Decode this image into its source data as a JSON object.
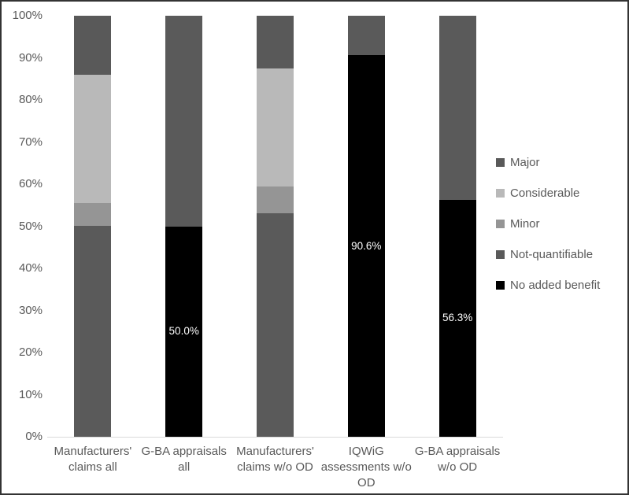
{
  "chart_data": {
    "type": "bar",
    "subtype": "100%-stacked-column",
    "title": "",
    "categories": [
      [
        "Manufacturers'",
        "claims all"
      ],
      [
        "G-BA appraisals all"
      ],
      [
        "Manufacturers'",
        "claims w/o OD"
      ],
      [
        "IQWiG",
        "assessments w/o",
        "OD"
      ],
      [
        "G-BA appraisals",
        "w/o OD"
      ]
    ],
    "series": [
      {
        "name": "No added benefit",
        "color": "#000000",
        "values": [
          0,
          50.0,
          0,
          90.6,
          56.3
        ]
      },
      {
        "name": "Not-quantifiable",
        "color": "#5a5a5a",
        "values": [
          50.0,
          50.0,
          53.1,
          9.4,
          43.7
        ]
      },
      {
        "name": "Minor",
        "color": "#959595",
        "values": [
          5.5,
          0,
          6.3,
          0,
          0
        ]
      },
      {
        "name": "Considerable",
        "color": "#b9b9b9",
        "values": [
          30.5,
          0,
          28.1,
          0,
          0
        ]
      },
      {
        "name": "Major",
        "color": "#595959",
        "values": [
          14.0,
          0,
          12.5,
          0,
          0
        ]
      }
    ],
    "bar_labels": [
      "",
      "50.0%",
      "",
      "90.6%",
      "56.3%"
    ],
    "y_ticks": [
      "0%",
      "10%",
      "20%",
      "30%",
      "40%",
      "50%",
      "60%",
      "70%",
      "80%",
      "90%",
      "100%"
    ],
    "ylim": [
      0,
      100
    ],
    "grid": false,
    "legend_position": "right",
    "legend_order": [
      "Major",
      "Considerable",
      "Minor",
      "Not-quantifiable",
      "No added benefit"
    ],
    "colors": {
      "axis_text": "#595959",
      "axis_line": "#d9d9d9",
      "data_label_text": "#ffffff",
      "background": "#ffffff",
      "frame_border": "#333333"
    }
  }
}
